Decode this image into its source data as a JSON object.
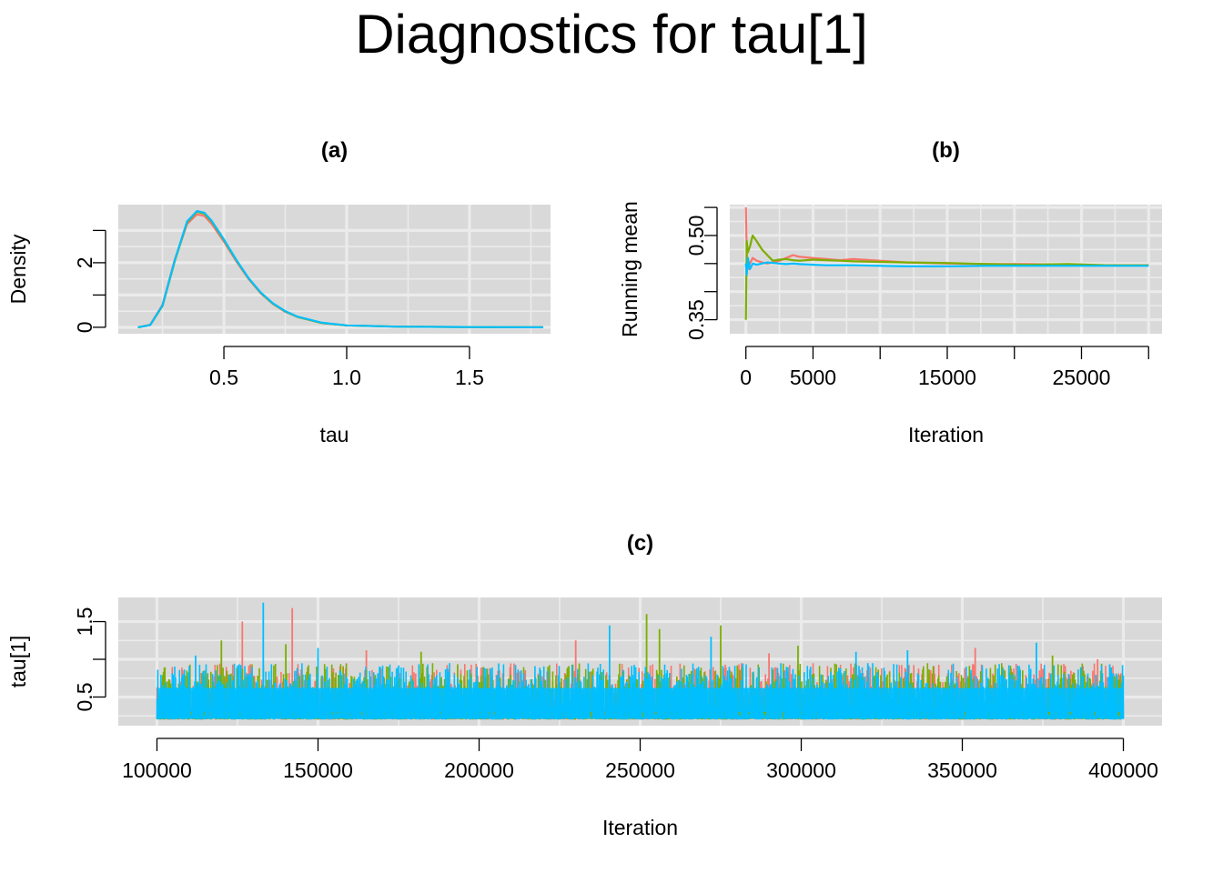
{
  "title": "Diagnostics for tau[1]",
  "colors": {
    "panel_bg": "#D9D9D9",
    "grid": "#EBEBEB",
    "chain1": "#F8766D",
    "chain2": "#7CAE00",
    "chain3": "#00BFFF"
  },
  "chart_data": [
    {
      "id": "a",
      "type": "line",
      "title": "(a)",
      "xlabel": "tau",
      "ylabel": "Density",
      "xlim": [
        0.07,
        1.83
      ],
      "ylim": [
        -0.2,
        3.8
      ],
      "xticks": [
        0.5,
        1.0,
        1.5
      ],
      "xtick_labels": [
        "0.5",
        "1.0",
        "1.5"
      ],
      "yticks": [
        0,
        1,
        2,
        3
      ],
      "ytick_labels": [
        "0",
        "",
        "2",
        ""
      ],
      "grid": true,
      "series": [
        {
          "color": "#F8766D",
          "x": [
            0.15,
            0.2,
            0.25,
            0.3,
            0.35,
            0.39,
            0.42,
            0.45,
            0.5,
            0.55,
            0.6,
            0.65,
            0.7,
            0.75,
            0.8,
            0.9,
            1.0,
            1.2,
            1.5,
            1.8
          ],
          "y": [
            0,
            0.08,
            0.7,
            2.1,
            3.2,
            3.5,
            3.45,
            3.2,
            2.65,
            2.05,
            1.5,
            1.05,
            0.72,
            0.48,
            0.32,
            0.13,
            0.06,
            0.02,
            0.005,
            0
          ]
        },
        {
          "color": "#7CAE00",
          "x": [
            0.15,
            0.2,
            0.25,
            0.3,
            0.35,
            0.39,
            0.42,
            0.45,
            0.5,
            0.55,
            0.6,
            0.65,
            0.7,
            0.75,
            0.8,
            0.9,
            1.0,
            1.2,
            1.5,
            1.8
          ],
          "y": [
            0,
            0.07,
            0.66,
            2.05,
            3.25,
            3.58,
            3.52,
            3.28,
            2.7,
            2.08,
            1.52,
            1.07,
            0.73,
            0.49,
            0.32,
            0.13,
            0.06,
            0.02,
            0.005,
            0
          ]
        },
        {
          "color": "#00BFFF",
          "x": [
            0.15,
            0.2,
            0.25,
            0.3,
            0.35,
            0.39,
            0.42,
            0.45,
            0.5,
            0.55,
            0.6,
            0.65,
            0.7,
            0.75,
            0.8,
            0.9,
            1.0,
            1.2,
            1.5,
            1.8
          ],
          "y": [
            0,
            0.07,
            0.68,
            2.08,
            3.28,
            3.6,
            3.55,
            3.3,
            2.72,
            2.1,
            1.53,
            1.08,
            0.74,
            0.5,
            0.33,
            0.14,
            0.06,
            0.02,
            0.005,
            0
          ]
        }
      ]
    },
    {
      "id": "b",
      "type": "line",
      "title": "(b)",
      "xlabel": "Iteration",
      "ylabel": "Running mean",
      "xlim": [
        -1200,
        31000
      ],
      "ylim": [
        0.325,
        0.555
      ],
      "xticks": [
        0,
        5000,
        10000,
        15000,
        20000,
        25000,
        30000
      ],
      "xtick_labels": [
        "0",
        "5000",
        "",
        "15000",
        "",
        "25000",
        ""
      ],
      "yticks": [
        0.35,
        0.4,
        0.45,
        0.5,
        0.55
      ],
      "ytick_labels": [
        "0.35",
        "",
        "",
        "0.50",
        ""
      ],
      "grid": true,
      "series": [
        {
          "color": "#F8766D",
          "x": [
            0,
            60,
            150,
            300,
            500,
            800,
            1200,
            1600,
            2000,
            2500,
            3000,
            3500,
            4000,
            5000,
            6000,
            7000,
            8000,
            10000,
            12000,
            15000,
            18000,
            21000,
            24000,
            27000,
            30000
          ],
          "y": [
            0.55,
            0.47,
            0.44,
            0.45,
            0.46,
            0.455,
            0.452,
            0.45,
            0.452,
            0.455,
            0.46,
            0.465,
            0.462,
            0.46,
            0.458,
            0.456,
            0.458,
            0.455,
            0.452,
            0.45,
            0.449,
            0.449,
            0.448,
            0.447,
            0.447
          ]
        },
        {
          "color": "#7CAE00",
          "x": [
            0,
            60,
            150,
            300,
            500,
            800,
            1200,
            1600,
            2000,
            2500,
            3000,
            3500,
            4000,
            5000,
            6000,
            7000,
            8000,
            10000,
            12000,
            15000,
            18000,
            21000,
            24000,
            27000,
            30000
          ],
          "y": [
            0.35,
            0.49,
            0.47,
            0.48,
            0.5,
            0.49,
            0.475,
            0.465,
            0.455,
            0.457,
            0.458,
            0.456,
            0.455,
            0.457,
            0.456,
            0.455,
            0.454,
            0.453,
            0.452,
            0.451,
            0.449,
            0.448,
            0.449,
            0.447,
            0.447
          ]
        },
        {
          "color": "#00BFFF",
          "x": [
            0,
            60,
            150,
            300,
            500,
            800,
            1200,
            1600,
            2000,
            2500,
            3000,
            3500,
            4000,
            5000,
            6000,
            7000,
            8000,
            10000,
            12000,
            15000,
            18000,
            21000,
            24000,
            27000,
            30000
          ],
          "y": [
            0.45,
            0.43,
            0.46,
            0.44,
            0.45,
            0.448,
            0.45,
            0.452,
            0.451,
            0.45,
            0.449,
            0.45,
            0.449,
            0.448,
            0.447,
            0.447,
            0.447,
            0.446,
            0.445,
            0.445,
            0.446,
            0.446,
            0.446,
            0.446,
            0.446
          ]
        }
      ]
    },
    {
      "id": "c",
      "type": "line",
      "title": "(c)",
      "xlabel": "Iteration",
      "ylabel": "tau[1]",
      "xlim": [
        88000,
        412000
      ],
      "ylim": [
        0.12,
        1.82
      ],
      "xticks": [
        100000,
        150000,
        200000,
        250000,
        300000,
        350000,
        400000
      ],
      "xtick_labels": [
        "100000",
        "150000",
        "200000",
        "250000",
        "300000",
        "350000",
        "400000"
      ],
      "yticks": [
        0.5,
        1.0,
        1.5
      ],
      "ytick_labels": [
        "0.5",
        "",
        "1.5"
      ],
      "grid": true,
      "trace_band": {
        "lower": 0.22,
        "upper": 0.82,
        "median": 0.45,
        "draws_per_chain": 1200
      },
      "series": [
        {
          "color": "#F8766D",
          "spikes_x": [
            126500,
            142000,
            165000,
            230000,
            290000,
            354000,
            392000
          ],
          "spikes_y": [
            1.5,
            1.68,
            1.12,
            1.25,
            1.08,
            1.15,
            1.0
          ]
        },
        {
          "color": "#7CAE00",
          "spikes_x": [
            120000,
            140000,
            182000,
            252000,
            256000,
            275000,
            299000,
            378000
          ],
          "spikes_y": [
            1.25,
            1.2,
            1.1,
            1.6,
            1.4,
            1.45,
            1.18,
            1.05
          ]
        },
        {
          "color": "#00BFFF",
          "spikes_x": [
            112000,
            133000,
            150000,
            240500,
            272000,
            317000,
            333000,
            373000
          ],
          "spikes_y": [
            1.05,
            1.75,
            1.15,
            1.45,
            1.3,
            1.1,
            1.12,
            1.22
          ]
        }
      ]
    }
  ]
}
